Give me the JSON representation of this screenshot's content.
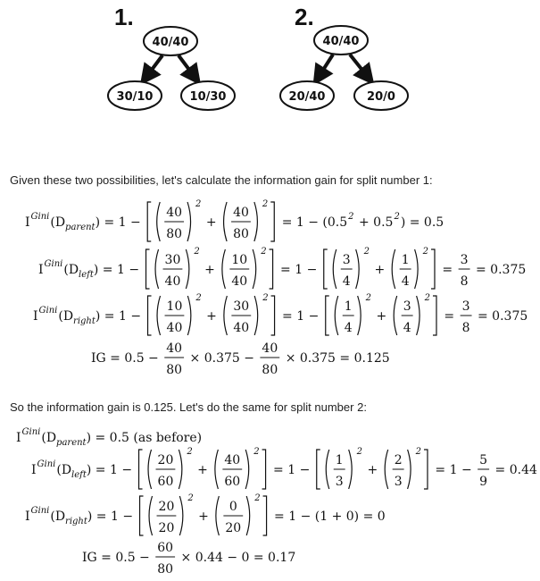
{
  "trees": [
    {
      "label": "1.",
      "root": "40/40",
      "left": "30/10",
      "right": "10/30"
    },
    {
      "label": "2.",
      "root": "40/40",
      "left": "20/40",
      "right": "20/0"
    }
  ],
  "paragraphs": [
    "Given these two possibilities, let's calculate the information gain for split number 1:",
    "So the information gain is 0.125. Let's do the same for split number 2:"
  ],
  "equations": [
    [
      "I",
      {
        "sup": "Gini"
      },
      "(D",
      {
        "sub": "parent"
      },
      ") = 1 − ",
      {
        "delim": "["
      },
      {
        "delim": "("
      },
      {
        "frac": [
          "40",
          "80"
        ]
      },
      {
        "delim": ")"
      },
      {
        "sup": "2"
      },
      " + ",
      {
        "delim": "("
      },
      {
        "frac": [
          "40",
          "80"
        ]
      },
      {
        "delim": ")"
      },
      {
        "sup": "2"
      },
      {
        "delim": "]"
      },
      " = 1 − (0.5",
      {
        "sup": "2"
      },
      " + 0.5",
      {
        "sup": "2"
      },
      ") = 0.5"
    ],
    [
      "I",
      {
        "sup": "Gini"
      },
      "(D",
      {
        "sub": "left"
      },
      ") = 1 − ",
      {
        "delim": "["
      },
      {
        "delim": "("
      },
      {
        "frac": [
          "30",
          "40"
        ]
      },
      {
        "delim": ")"
      },
      {
        "sup": "2"
      },
      " + ",
      {
        "delim": "("
      },
      {
        "frac": [
          "10",
          "40"
        ]
      },
      {
        "delim": ")"
      },
      {
        "sup": "2"
      },
      {
        "delim": "]"
      },
      " = 1 − ",
      {
        "delim": "["
      },
      {
        "delim": "("
      },
      {
        "frac": [
          "3",
          "4"
        ]
      },
      {
        "delim": ")"
      },
      {
        "sup": "2"
      },
      " + ",
      {
        "delim": "("
      },
      {
        "frac": [
          "1",
          "4"
        ]
      },
      {
        "delim": ")"
      },
      {
        "sup": "2"
      },
      {
        "delim": "]"
      },
      " = ",
      {
        "frac": [
          "3",
          "8"
        ]
      },
      " = 0.375"
    ],
    [
      "I",
      {
        "sup": "Gini"
      },
      "(D",
      {
        "sub": "right"
      },
      ") = 1 − ",
      {
        "delim": "["
      },
      {
        "delim": "("
      },
      {
        "frac": [
          "10",
          "40"
        ]
      },
      {
        "delim": ")"
      },
      {
        "sup": "2"
      },
      " + ",
      {
        "delim": "("
      },
      {
        "frac": [
          "30",
          "40"
        ]
      },
      {
        "delim": ")"
      },
      {
        "sup": "2"
      },
      {
        "delim": "]"
      },
      " = 1 − ",
      {
        "delim": "["
      },
      {
        "delim": "("
      },
      {
        "frac": [
          "1",
          "4"
        ]
      },
      {
        "delim": ")"
      },
      {
        "sup": "2"
      },
      " + ",
      {
        "delim": "("
      },
      {
        "frac": [
          "3",
          "4"
        ]
      },
      {
        "delim": ")"
      },
      {
        "sup": "2"
      },
      {
        "delim": "]"
      },
      " = ",
      {
        "frac": [
          "3",
          "8"
        ]
      },
      " = 0.375"
    ],
    [
      "IG = 0.5 − ",
      {
        "frac": [
          "40",
          "80"
        ]
      },
      " × 0.375 − ",
      {
        "frac": [
          "40",
          "80"
        ]
      },
      " × 0.375 = 0.125"
    ],
    [
      "I",
      {
        "sup": "Gini"
      },
      "(D",
      {
        "sub": "parent"
      },
      ") = 0.5 (as before)"
    ],
    [
      "I",
      {
        "sup": "Gini"
      },
      "(D",
      {
        "sub": "left"
      },
      ") = 1 − ",
      {
        "delim": "["
      },
      {
        "delim": "("
      },
      {
        "frac": [
          "20",
          "60"
        ]
      },
      {
        "delim": ")"
      },
      {
        "sup": "2"
      },
      " + ",
      {
        "delim": "("
      },
      {
        "frac": [
          "40",
          "60"
        ]
      },
      {
        "delim": ")"
      },
      {
        "sup": "2"
      },
      {
        "delim": "]"
      },
      " = 1 − ",
      {
        "delim": "["
      },
      {
        "delim": "("
      },
      {
        "frac": [
          "1",
          "3"
        ]
      },
      {
        "delim": ")"
      },
      {
        "sup": "2"
      },
      " + ",
      {
        "delim": "("
      },
      {
        "frac": [
          "2",
          "3"
        ]
      },
      {
        "delim": ")"
      },
      {
        "sup": "2"
      },
      {
        "delim": "]"
      },
      " = 1 − ",
      {
        "frac": [
          "5",
          "9"
        ]
      },
      " = 0.44"
    ],
    [
      "I",
      {
        "sup": "Gini"
      },
      "(D",
      {
        "sub": "right"
      },
      ") = 1 − ",
      {
        "delim": "["
      },
      {
        "delim": "("
      },
      {
        "frac": [
          "20",
          "20"
        ]
      },
      {
        "delim": ")"
      },
      {
        "sup": "2"
      },
      " + ",
      {
        "delim": "("
      },
      {
        "frac": [
          "0",
          "20"
        ]
      },
      {
        "delim": ")"
      },
      {
        "sup": "2"
      },
      {
        "delim": "]"
      },
      " = 1 − (1 + 0) = 0"
    ],
    [
      "IG = 0.5 − ",
      {
        "frac": [
          "60",
          "80"
        ]
      },
      " × 0.44 − 0 = 0.17"
    ]
  ]
}
